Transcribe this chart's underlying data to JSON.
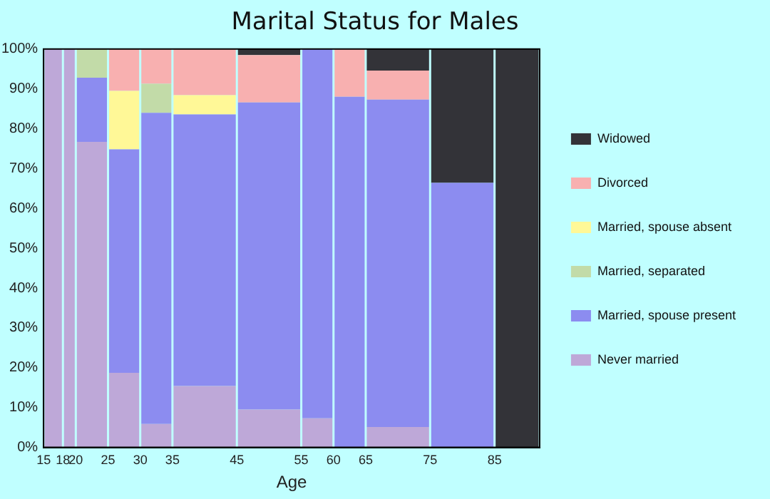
{
  "chart_data": {
    "type": "bar",
    "title": "Marital Status for Males",
    "xlabel": "Age",
    "stacked": true,
    "legend": "right",
    "x": [
      16.5,
      19,
      22.5,
      27.5,
      32.5,
      40,
      50,
      57.5,
      62.5,
      70,
      80,
      88.5
    ],
    "xlim": [
      15,
      92
    ],
    "xticks": [
      15,
      18,
      20,
      25,
      30,
      35,
      45,
      55,
      60,
      65,
      75,
      85
    ],
    "ylim": [
      0,
      100
    ],
    "yticks": [
      {
        "value": 0,
        "label": "0%"
      },
      {
        "value": 10,
        "label": "10%"
      },
      {
        "value": 20,
        "label": "20%"
      },
      {
        "value": 30,
        "label": "30%"
      },
      {
        "value": 40,
        "label": "40%"
      },
      {
        "value": 50,
        "label": "50%"
      },
      {
        "value": 60,
        "label": "60%"
      },
      {
        "value": 70,
        "label": "70%"
      },
      {
        "value": 80,
        "label": "80%"
      },
      {
        "value": 90,
        "label": "90%"
      },
      {
        "value": 100,
        "label": "100%"
      }
    ],
    "series": [
      {
        "name": "Never married",
        "color": "#bea8d8",
        "values": [
          100,
          100,
          76.7,
          18.7,
          5.9,
          15.4,
          9.5,
          7.3,
          null,
          5.1,
          null,
          null
        ]
      },
      {
        "name": "Married, spouse present",
        "color": "#8c8cf0",
        "values": [
          null,
          null,
          16.1,
          56.1,
          78.1,
          68.2,
          77.1,
          92.7,
          88,
          82.2,
          66.4,
          null
        ]
      },
      {
        "name": "Married, separated",
        "color": "#c2dba8",
        "values": [
          null,
          null,
          7.2,
          null,
          7.3,
          null,
          null,
          null,
          null,
          null,
          null,
          null
        ]
      },
      {
        "name": "Married, spouse absent",
        "color": "#fff897",
        "values": [
          null,
          null,
          null,
          14.7,
          null,
          4.8,
          null,
          null,
          null,
          null,
          null,
          null
        ]
      },
      {
        "name": "Divorced",
        "color": "#f8b0b0",
        "values": [
          null,
          null,
          null,
          10.5,
          8.7,
          11.6,
          11.9,
          null,
          12,
          7.3,
          null,
          null
        ]
      },
      {
        "name": "Widowed",
        "color": "#333338",
        "values": [
          null,
          null,
          null,
          null,
          null,
          null,
          1.5,
          null,
          null,
          5.4,
          33.6,
          100
        ]
      }
    ]
  }
}
